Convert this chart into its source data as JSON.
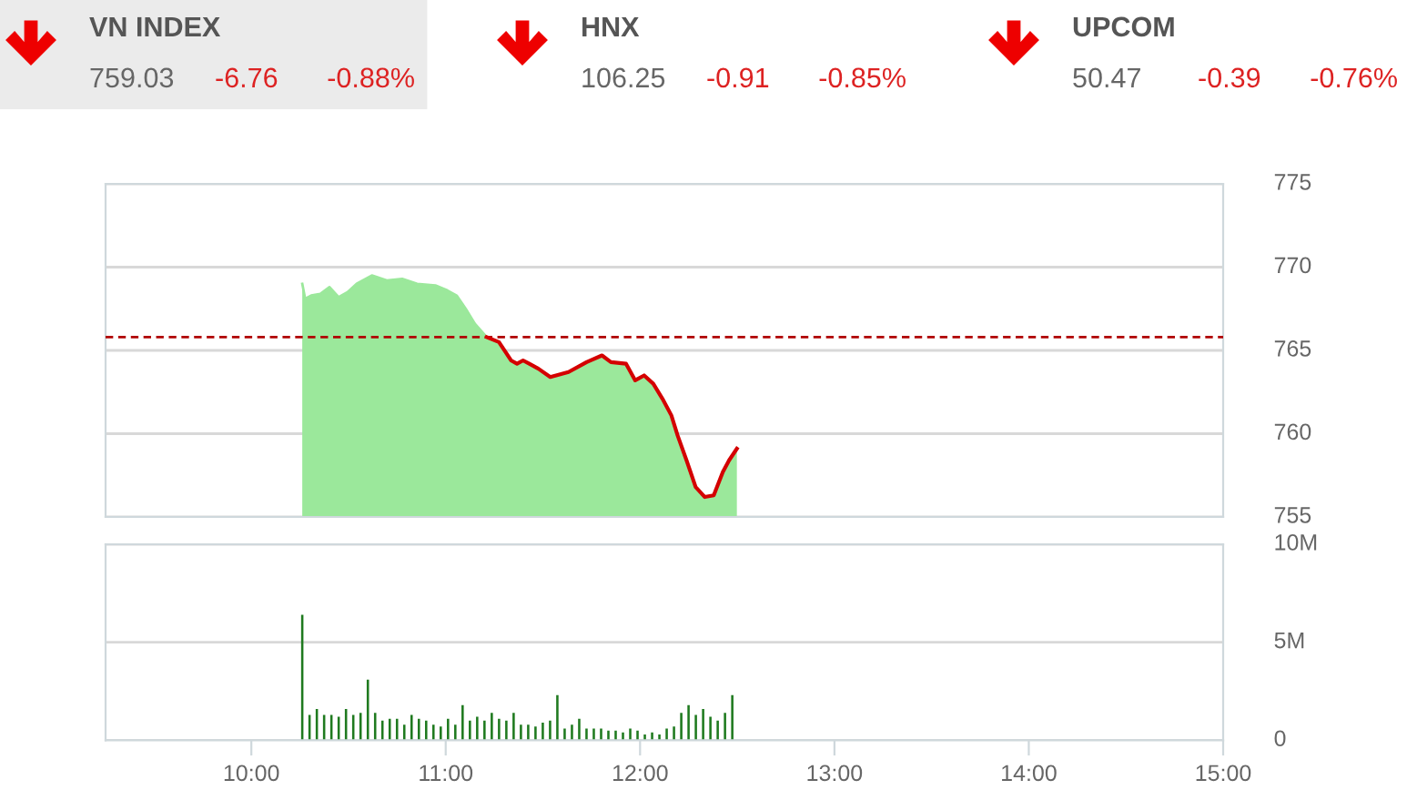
{
  "chart_data": [
    {
      "type": "other",
      "annotations": [
        "VN INDEX",
        "759.03",
        "-6.76",
        "-0.88%",
        "HNX",
        "106.25",
        "-0.91",
        "-0.85%",
        "UPCOM",
        "50.47",
        "-0.39",
        "-0.76%"
      ]
    },
    {
      "type": "area",
      "xlim": [
        9.25,
        15
      ],
      "ylim": [
        755,
        775
      ],
      "yticks": [
        755,
        760,
        765,
        770,
        775
      ],
      "grid": "y",
      "tick_labels": "y",
      "ref_lines": [
        {
          "axis": "y",
          "value": 765.8,
          "color": "#b00000",
          "line_style": "dashed"
        }
      ],
      "series": [
        {
          "color": "#9be89b",
          "x": [
            10.262,
            10.277,
            10.308,
            10.355,
            10.402,
            10.449,
            10.495,
            10.542,
            10.62,
            10.697,
            10.776,
            10.853,
            10.947,
            11.009,
            11.056,
            11.103,
            11.15,
            11.211,
            11.274,
            11.336,
            11.367,
            11.398,
            11.43,
            11.477,
            11.538,
            11.632,
            11.725,
            11.804,
            11.85,
            11.928,
            11.975,
            12.021,
            12.068,
            12.115,
            12.161,
            12.193,
            12.239,
            12.286,
            12.333,
            12.379,
            12.426,
            12.458,
            12.498
          ],
          "values": [
            769.0,
            768.1,
            768.3,
            768.4,
            768.8,
            768.2,
            768.5,
            769.0,
            769.5,
            769.2,
            769.3,
            769.0,
            768.9,
            768.6,
            768.3,
            767.5,
            766.6,
            765.8,
            765.5,
            764.4,
            764.2,
            764.4,
            764.2,
            763.9,
            763.4,
            763.7,
            764.3,
            764.7,
            764.3,
            764.2,
            763.2,
            763.5,
            763.0,
            762.1,
            761.1,
            759.9,
            758.4,
            756.8,
            756.2,
            756.3,
            757.7,
            758.4,
            759.1
          ]
        },
        {
          "type": "line",
          "color": "#d40000",
          "x": [
            11.211,
            11.274,
            11.336,
            11.367,
            11.398,
            11.43,
            11.477,
            11.538,
            11.632,
            11.725,
            11.804,
            11.85,
            11.928,
            11.975,
            12.021,
            12.068,
            12.115,
            12.161,
            12.193,
            12.239,
            12.286,
            12.333,
            12.379,
            12.426,
            12.458,
            12.498
          ],
          "values": [
            765.8,
            765.5,
            764.4,
            764.2,
            764.4,
            764.2,
            763.9,
            763.4,
            763.7,
            764.3,
            764.7,
            764.3,
            764.2,
            763.2,
            763.5,
            763.0,
            762.1,
            761.1,
            759.9,
            758.4,
            756.8,
            756.2,
            756.3,
            757.7,
            758.4,
            759.1
          ]
        }
      ]
    },
    {
      "type": "bar",
      "xlim": [
        9.25,
        15
      ],
      "xticks": [
        {
          "value": 10,
          "label": "10:00"
        },
        {
          "value": 11,
          "label": "11:00"
        },
        {
          "value": 12,
          "label": "12:00"
        },
        {
          "value": 13,
          "label": "13:00"
        },
        {
          "value": 14,
          "label": "14:00"
        },
        {
          "value": 15,
          "label": "15:00"
        }
      ],
      "ylim": [
        0,
        10
      ],
      "yticks": [
        0,
        {
          "value": 5,
          "label": "5M"
        },
        {
          "value": 10,
          "label": "10M"
        }
      ],
      "grid": "y",
      "color": "#1f7a1f",
      "x": [
        10.262,
        10.2995,
        10.337,
        10.3745,
        10.412,
        10.4495,
        10.487,
        10.5245,
        10.562,
        10.5995,
        10.637,
        10.6745,
        10.712,
        10.7495,
        10.787,
        10.8245,
        10.862,
        10.8995,
        10.937,
        10.9745,
        11.012,
        11.0495,
        11.087,
        11.1245,
        11.162,
        11.1995,
        11.237,
        11.2745,
        11.312,
        11.3495,
        11.387,
        11.4245,
        11.462,
        11.4995,
        11.537,
        11.5745,
        11.612,
        11.6495,
        11.687,
        11.7245,
        11.762,
        11.7995,
        11.837,
        11.8745,
        11.912,
        11.9495,
        11.987,
        12.0245,
        12.062,
        12.0995,
        12.137,
        12.1745,
        12.212,
        12.2495,
        12.287,
        12.3245,
        12.362,
        12.3995,
        12.437,
        12.4745
      ],
      "values": [
        6.4,
        1.3,
        1.6,
        1.3,
        1.3,
        1.2,
        1.6,
        1.3,
        1.4,
        3.1,
        1.4,
        1.0,
        1.1,
        1.1,
        0.8,
        1.3,
        1.1,
        1.0,
        0.8,
        0.7,
        1.1,
        0.8,
        1.8,
        1.0,
        1.2,
        1.0,
        1.4,
        1.1,
        1.0,
        1.4,
        0.8,
        0.8,
        0.7,
        0.9,
        1.0,
        2.3,
        0.6,
        0.8,
        1.1,
        0.6,
        0.6,
        0.6,
        0.5,
        0.5,
        0.4,
        0.6,
        0.5,
        0.3,
        0.4,
        0.3,
        0.6,
        0.7,
        1.4,
        1.8,
        1.3,
        1.6,
        1.2,
        1.0,
        1.4,
        2.3
      ]
    }
  ]
}
